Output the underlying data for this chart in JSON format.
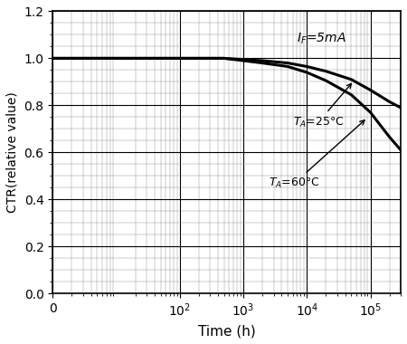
{
  "xlabel": "Time (h)",
  "ylabel": "CTR(relative value)",
  "ylim": [
    0,
    1.2
  ],
  "yticks": [
    0,
    0.2,
    0.4,
    0.6,
    0.8,
    1.0,
    1.2
  ],
  "annotation_ta25": "TA=25",
  "annotation_ta60": "TA=60",
  "curve_25_x": [
    1,
    10,
    100,
    500,
    1000,
    2000,
    5000,
    10000,
    20000,
    50000,
    100000,
    200000,
    300000
  ],
  "curve_25_y": [
    1.0,
    1.0,
    1.0,
    1.0,
    0.995,
    0.99,
    0.98,
    0.965,
    0.945,
    0.91,
    0.865,
    0.815,
    0.79
  ],
  "curve_60_x": [
    1,
    10,
    100,
    500,
    1000,
    2000,
    5000,
    10000,
    20000,
    50000,
    100000,
    200000,
    300000
  ],
  "curve_60_y": [
    1.0,
    1.0,
    1.0,
    1.0,
    0.99,
    0.98,
    0.965,
    0.94,
    0.905,
    0.845,
    0.77,
    0.665,
    0.61
  ],
  "line_color": "#000000",
  "line_width": 2.2,
  "background_color": "#ffffff",
  "grid_color": "#000000",
  "font_size": 10
}
